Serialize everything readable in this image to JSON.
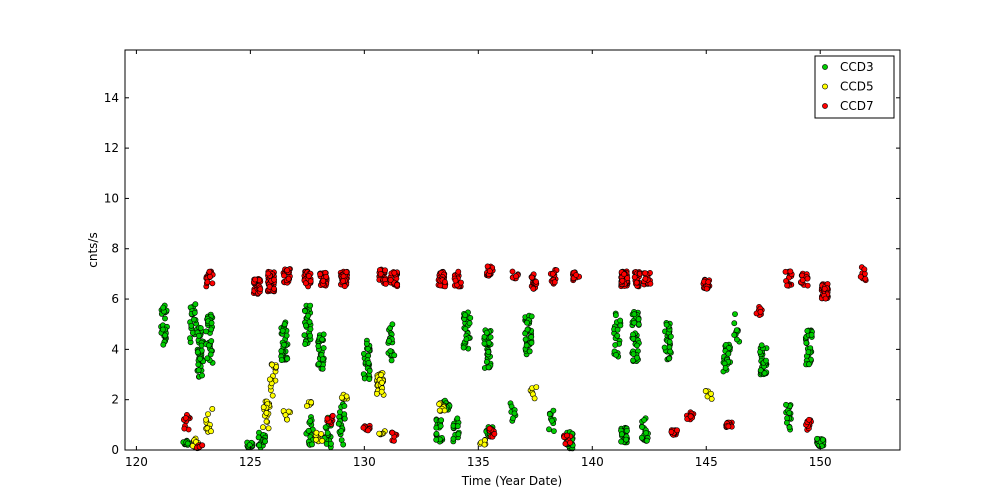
{
  "chart_data": {
    "type": "scatter",
    "title": "",
    "xlabel": "Time (Year Date)",
    "ylabel": "cnts/s",
    "xlim": [
      119.5,
      153.5
    ],
    "ylim": [
      0,
      15.9
    ],
    "xticks": [
      120,
      125,
      130,
      135,
      140,
      145,
      150
    ],
    "yticks": [
      0,
      2,
      4,
      6,
      8,
      10,
      12,
      14
    ],
    "grid": false,
    "legend_position": "top-right",
    "series": [
      {
        "name": "CCD3",
        "color": "#00cc00",
        "clusters": [
          {
            "x": 121.2,
            "y": 4.95,
            "spread": 0.8,
            "n": 30
          },
          {
            "x": 122.2,
            "y": 0.3,
            "spread": 0.1,
            "n": 10
          },
          {
            "x": 122.5,
            "y": 4.8,
            "spread": 1.0,
            "n": 20
          },
          {
            "x": 122.8,
            "y": 3.9,
            "spread": 1.0,
            "n": 40
          },
          {
            "x": 123.2,
            "y": 4.4,
            "spread": 1.0,
            "n": 30
          },
          {
            "x": 125.0,
            "y": 0.2,
            "spread": 0.1,
            "n": 20
          },
          {
            "x": 125.5,
            "y": 0.4,
            "spread": 0.3,
            "n": 20
          },
          {
            "x": 126.5,
            "y": 4.3,
            "spread": 0.8,
            "n": 30
          },
          {
            "x": 127.5,
            "y": 5.0,
            "spread": 0.8,
            "n": 30
          },
          {
            "x": 127.6,
            "y": 0.8,
            "spread": 0.6,
            "n": 20
          },
          {
            "x": 128.1,
            "y": 3.9,
            "spread": 0.7,
            "n": 30
          },
          {
            "x": 128.4,
            "y": 0.7,
            "spread": 0.6,
            "n": 20
          },
          {
            "x": 129.0,
            "y": 1.0,
            "spread": 0.9,
            "n": 20
          },
          {
            "x": 130.1,
            "y": 3.6,
            "spread": 0.8,
            "n": 30
          },
          {
            "x": 131.2,
            "y": 4.3,
            "spread": 0.8,
            "n": 20
          },
          {
            "x": 133.3,
            "y": 0.8,
            "spread": 0.5,
            "n": 20
          },
          {
            "x": 133.6,
            "y": 1.8,
            "spread": 0.2,
            "n": 20
          },
          {
            "x": 134.0,
            "y": 0.8,
            "spread": 0.5,
            "n": 15
          },
          {
            "x": 134.5,
            "y": 4.8,
            "spread": 0.8,
            "n": 25
          },
          {
            "x": 135.4,
            "y": 4.0,
            "spread": 0.8,
            "n": 35
          },
          {
            "x": 135.5,
            "y": 0.7,
            "spread": 0.3,
            "n": 10
          },
          {
            "x": 136.5,
            "y": 1.5,
            "spread": 0.4,
            "n": 10
          },
          {
            "x": 137.2,
            "y": 4.6,
            "spread": 0.8,
            "n": 35
          },
          {
            "x": 138.2,
            "y": 1.2,
            "spread": 0.5,
            "n": 10
          },
          {
            "x": 139.0,
            "y": 0.4,
            "spread": 0.4,
            "n": 20
          },
          {
            "x": 141.1,
            "y": 4.6,
            "spread": 0.9,
            "n": 20
          },
          {
            "x": 141.4,
            "y": 0.6,
            "spread": 0.3,
            "n": 30
          },
          {
            "x": 141.9,
            "y": 4.5,
            "spread": 1.0,
            "n": 40
          },
          {
            "x": 142.3,
            "y": 0.8,
            "spread": 0.5,
            "n": 20
          },
          {
            "x": 143.3,
            "y": 4.4,
            "spread": 0.8,
            "n": 30
          },
          {
            "x": 145.9,
            "y": 3.7,
            "spread": 0.6,
            "n": 30
          },
          {
            "x": 146.3,
            "y": 4.9,
            "spread": 0.6,
            "n": 10
          },
          {
            "x": 147.5,
            "y": 3.6,
            "spread": 0.6,
            "n": 40
          },
          {
            "x": 148.6,
            "y": 1.3,
            "spread": 0.5,
            "n": 15
          },
          {
            "x": 149.5,
            "y": 4.1,
            "spread": 0.7,
            "n": 30
          },
          {
            "x": 150.0,
            "y": 0.3,
            "spread": 0.15,
            "n": 40
          }
        ]
      },
      {
        "name": "CCD5",
        "color": "#ffff00",
        "clusters": [
          {
            "x": 122.6,
            "y": 0.3,
            "spread": 0.2,
            "n": 10
          },
          {
            "x": 123.2,
            "y": 1.1,
            "spread": 0.6,
            "n": 12
          },
          {
            "x": 125.7,
            "y": 1.4,
            "spread": 0.6,
            "n": 20
          },
          {
            "x": 126.0,
            "y": 2.8,
            "spread": 0.8,
            "n": 15
          },
          {
            "x": 126.6,
            "y": 1.4,
            "spread": 0.2,
            "n": 8
          },
          {
            "x": 127.6,
            "y": 1.9,
            "spread": 0.2,
            "n": 6
          },
          {
            "x": 128.0,
            "y": 0.5,
            "spread": 0.3,
            "n": 8
          },
          {
            "x": 129.1,
            "y": 2.1,
            "spread": 0.1,
            "n": 6
          },
          {
            "x": 130.7,
            "y": 2.6,
            "spread": 0.5,
            "n": 30
          },
          {
            "x": 130.8,
            "y": 0.6,
            "spread": 0.2,
            "n": 6
          },
          {
            "x": 133.4,
            "y": 1.8,
            "spread": 0.3,
            "n": 10
          },
          {
            "x": 135.2,
            "y": 0.4,
            "spread": 0.2,
            "n": 6
          },
          {
            "x": 137.4,
            "y": 2.3,
            "spread": 0.3,
            "n": 6
          },
          {
            "x": 145.1,
            "y": 2.2,
            "spread": 0.2,
            "n": 6
          }
        ]
      },
      {
        "name": "CCD7",
        "color": "#ff0000",
        "clusters": [
          {
            "x": 122.2,
            "y": 1.1,
            "spread": 0.3,
            "n": 12
          },
          {
            "x": 122.8,
            "y": 0.1,
            "spread": 0.1,
            "n": 12
          },
          {
            "x": 123.2,
            "y": 6.8,
            "spread": 0.3,
            "n": 20
          },
          {
            "x": 125.3,
            "y": 6.5,
            "spread": 0.3,
            "n": 40
          },
          {
            "x": 125.9,
            "y": 6.7,
            "spread": 0.4,
            "n": 60
          },
          {
            "x": 126.6,
            "y": 6.9,
            "spread": 0.3,
            "n": 20
          },
          {
            "x": 127.5,
            "y": 6.8,
            "spread": 0.3,
            "n": 35
          },
          {
            "x": 128.2,
            "y": 6.8,
            "spread": 0.3,
            "n": 40
          },
          {
            "x": 128.5,
            "y": 1.2,
            "spread": 0.2,
            "n": 10
          },
          {
            "x": 129.1,
            "y": 6.8,
            "spread": 0.3,
            "n": 35
          },
          {
            "x": 130.1,
            "y": 0.8,
            "spread": 0.2,
            "n": 10
          },
          {
            "x": 130.8,
            "y": 6.9,
            "spread": 0.3,
            "n": 35
          },
          {
            "x": 131.3,
            "y": 6.8,
            "spread": 0.3,
            "n": 20
          },
          {
            "x": 131.3,
            "y": 0.5,
            "spread": 0.2,
            "n": 8
          },
          {
            "x": 133.4,
            "y": 6.8,
            "spread": 0.3,
            "n": 40
          },
          {
            "x": 134.1,
            "y": 6.8,
            "spread": 0.3,
            "n": 20
          },
          {
            "x": 135.5,
            "y": 7.0,
            "spread": 0.3,
            "n": 15
          },
          {
            "x": 135.6,
            "y": 0.7,
            "spread": 0.2,
            "n": 10
          },
          {
            "x": 136.6,
            "y": 7.0,
            "spread": 0.2,
            "n": 8
          },
          {
            "x": 137.4,
            "y": 6.7,
            "spread": 0.3,
            "n": 20
          },
          {
            "x": 138.3,
            "y": 6.9,
            "spread": 0.3,
            "n": 15
          },
          {
            "x": 138.9,
            "y": 0.4,
            "spread": 0.2,
            "n": 12
          },
          {
            "x": 139.3,
            "y": 6.9,
            "spread": 0.2,
            "n": 10
          },
          {
            "x": 141.4,
            "y": 6.8,
            "spread": 0.3,
            "n": 60
          },
          {
            "x": 142.0,
            "y": 6.8,
            "spread": 0.3,
            "n": 25
          },
          {
            "x": 142.4,
            "y": 6.8,
            "spread": 0.3,
            "n": 15
          },
          {
            "x": 143.6,
            "y": 0.7,
            "spread": 0.1,
            "n": 15
          },
          {
            "x": 144.3,
            "y": 1.3,
            "spread": 0.2,
            "n": 10
          },
          {
            "x": 145.0,
            "y": 6.6,
            "spread": 0.2,
            "n": 20
          },
          {
            "x": 146.0,
            "y": 1.0,
            "spread": 0.1,
            "n": 15
          },
          {
            "x": 147.3,
            "y": 5.5,
            "spread": 0.2,
            "n": 8
          },
          {
            "x": 148.6,
            "y": 6.8,
            "spread": 0.3,
            "n": 15
          },
          {
            "x": 149.3,
            "y": 6.8,
            "spread": 0.3,
            "n": 15
          },
          {
            "x": 149.5,
            "y": 1.0,
            "spread": 0.2,
            "n": 12
          },
          {
            "x": 150.2,
            "y": 6.3,
            "spread": 0.3,
            "n": 45
          },
          {
            "x": 151.9,
            "y": 7.0,
            "spread": 0.3,
            "n": 8
          }
        ]
      }
    ]
  }
}
